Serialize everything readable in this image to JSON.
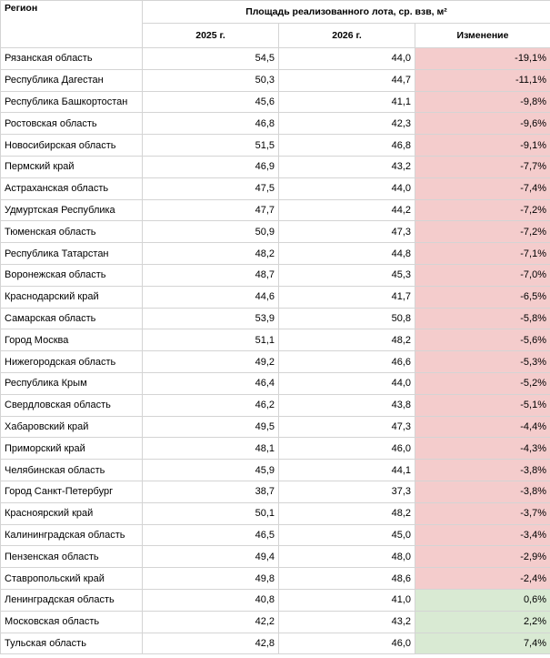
{
  "table": {
    "headers": {
      "region": "Регион",
      "group": "Площадь реализованного лота, ср. взв, м²",
      "year1": "2025 г.",
      "year2": "2026 г.",
      "change": "Изменение"
    },
    "rows": [
      {
        "region": "Рязанская область",
        "y2025": "54,5",
        "y2026": "44,0",
        "change": "-19,1%",
        "trend": "neg"
      },
      {
        "region": "Республика Дагестан",
        "y2025": "50,3",
        "y2026": "44,7",
        "change": "-11,1%",
        "trend": "neg"
      },
      {
        "region": "Республика Башкортостан",
        "y2025": "45,6",
        "y2026": "41,1",
        "change": "-9,8%",
        "trend": "neg"
      },
      {
        "region": "Ростовская область",
        "y2025": "46,8",
        "y2026": "42,3",
        "change": "-9,6%",
        "trend": "neg"
      },
      {
        "region": "Новосибирская область",
        "y2025": "51,5",
        "y2026": "46,8",
        "change": "-9,1%",
        "trend": "neg"
      },
      {
        "region": "Пермский край",
        "y2025": "46,9",
        "y2026": "43,2",
        "change": "-7,7%",
        "trend": "neg"
      },
      {
        "region": "Астраханская область",
        "y2025": "47,5",
        "y2026": "44,0",
        "change": "-7,4%",
        "trend": "neg"
      },
      {
        "region": "Удмуртская Республика",
        "y2025": "47,7",
        "y2026": "44,2",
        "change": "-7,2%",
        "trend": "neg"
      },
      {
        "region": "Тюменская область",
        "y2025": "50,9",
        "y2026": "47,3",
        "change": "-7,2%",
        "trend": "neg"
      },
      {
        "region": "Республика Татарстан",
        "y2025": "48,2",
        "y2026": "44,8",
        "change": "-7,1%",
        "trend": "neg"
      },
      {
        "region": "Воронежская область",
        "y2025": "48,7",
        "y2026": "45,3",
        "change": "-7,0%",
        "trend": "neg"
      },
      {
        "region": "Краснодарский край",
        "y2025": "44,6",
        "y2026": "41,7",
        "change": "-6,5%",
        "trend": "neg"
      },
      {
        "region": "Самарская область",
        "y2025": "53,9",
        "y2026": "50,8",
        "change": "-5,8%",
        "trend": "neg"
      },
      {
        "region": "Город Москва",
        "y2025": "51,1",
        "y2026": "48,2",
        "change": "-5,6%",
        "trend": "neg"
      },
      {
        "region": "Нижегородская область",
        "y2025": "49,2",
        "y2026": "46,6",
        "change": "-5,3%",
        "trend": "neg"
      },
      {
        "region": "Республика Крым",
        "y2025": "46,4",
        "y2026": "44,0",
        "change": "-5,2%",
        "trend": "neg"
      },
      {
        "region": "Свердловская область",
        "y2025": "46,2",
        "y2026": "43,8",
        "change": "-5,1%",
        "trend": "neg"
      },
      {
        "region": "Хабаровский край",
        "y2025": "49,5",
        "y2026": "47,3",
        "change": "-4,4%",
        "trend": "neg"
      },
      {
        "region": "Приморский край",
        "y2025": "48,1",
        "y2026": "46,0",
        "change": "-4,3%",
        "trend": "neg"
      },
      {
        "region": "Челябинская область",
        "y2025": "45,9",
        "y2026": "44,1",
        "change": "-3,8%",
        "trend": "neg"
      },
      {
        "region": "Город Санкт-Петербург",
        "y2025": "38,7",
        "y2026": "37,3",
        "change": "-3,8%",
        "trend": "neg"
      },
      {
        "region": "Красноярский край",
        "y2025": "50,1",
        "y2026": "48,2",
        "change": "-3,7%",
        "trend": "neg"
      },
      {
        "region": "Калининградская область",
        "y2025": "46,5",
        "y2026": "45,0",
        "change": "-3,4%",
        "trend": "neg"
      },
      {
        "region": "Пензенская область",
        "y2025": "49,4",
        "y2026": "48,0",
        "change": "-2,9%",
        "trend": "neg"
      },
      {
        "region": "Ставропольский край",
        "y2025": "49,8",
        "y2026": "48,6",
        "change": "-2,4%",
        "trend": "neg"
      },
      {
        "region": "Ленинградская область",
        "y2025": "40,8",
        "y2026": "41,0",
        "change": "0,6%",
        "trend": "pos"
      },
      {
        "region": "Московская область",
        "y2025": "42,2",
        "y2026": "43,2",
        "change": "2,2%",
        "trend": "pos"
      },
      {
        "region": "Тульская область",
        "y2025": "42,8",
        "y2026": "46,0",
        "change": "7,4%",
        "trend": "pos"
      }
    ]
  },
  "colors": {
    "negative_fill": "#f4cccc",
    "positive_fill": "#d9ead3",
    "grid": "#d4d4d4"
  }
}
